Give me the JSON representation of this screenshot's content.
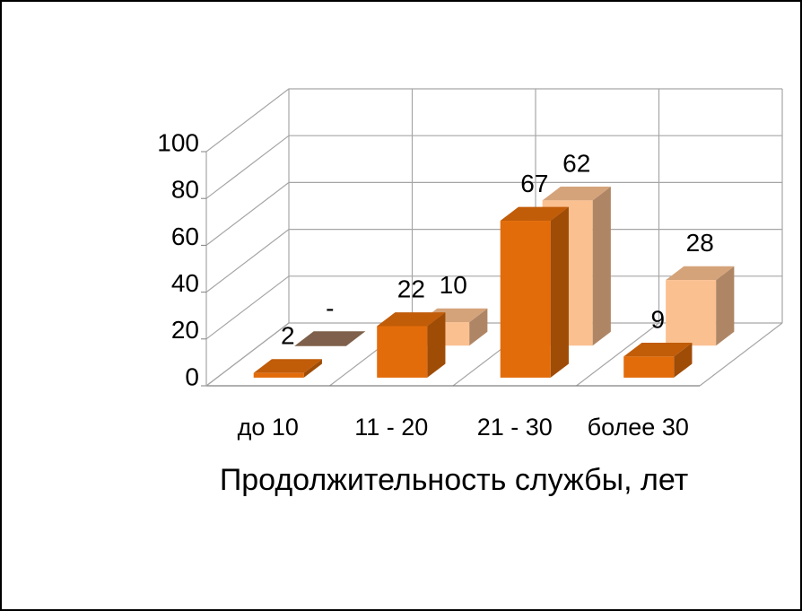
{
  "chart_data": {
    "type": "bar3d",
    "categories": [
      "до 10",
      "11 - 20",
      "21 - 30",
      "более 30"
    ],
    "series": [
      {
        "color": "#e36c0a",
        "values": [
          2,
          22,
          67,
          9
        ]
      },
      {
        "color": "#fac090",
        "values": [
          0,
          10,
          62,
          28
        ],
        "value_labels": [
          "-",
          "10",
          "62",
          "28"
        ]
      }
    ],
    "xlabel": "Продолжительность службы, лет",
    "ylim": [
      0,
      100
    ],
    "yticks": [
      0,
      20,
      40,
      60,
      80,
      100
    ],
    "grid": true
  }
}
